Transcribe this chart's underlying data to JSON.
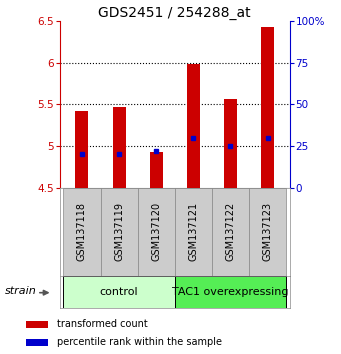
{
  "title": "GDS2451 / 254288_at",
  "samples": [
    "GSM137118",
    "GSM137119",
    "GSM137120",
    "GSM137121",
    "GSM137122",
    "GSM137123"
  ],
  "red_values": [
    5.42,
    5.47,
    4.93,
    5.98,
    5.57,
    6.43
  ],
  "blue_values": [
    20.0,
    20.0,
    22.0,
    30.0,
    25.0,
    30.0
  ],
  "bar_bottom": 4.5,
  "ylim_left": [
    4.5,
    6.5
  ],
  "ylim_right": [
    0,
    100
  ],
  "yticks_left": [
    4.5,
    5.0,
    5.5,
    6.0,
    6.5
  ],
  "ytick_labels_left": [
    "4.5",
    "5",
    "5.5",
    "6",
    "6.5"
  ],
  "yticks_right": [
    0,
    25,
    50,
    75,
    100
  ],
  "ytick_labels_right": [
    "0",
    "25",
    "50",
    "75",
    "100%"
  ],
  "grid_yticks": [
    5.0,
    5.5,
    6.0
  ],
  "groups": [
    {
      "label": "control",
      "indices": [
        0,
        1,
        2
      ],
      "color": "#ccffcc",
      "edge_color": "#88cc88"
    },
    {
      "label": "TAC1 overexpressing",
      "indices": [
        3,
        4,
        5
      ],
      "color": "#55ee55",
      "edge_color": "#22aa22"
    }
  ],
  "strain_label": "strain",
  "red_color": "#cc0000",
  "blue_color": "#0000cc",
  "legend_red": "transformed count",
  "legend_blue": "percentile rank within the sample",
  "bar_width": 0.35,
  "title_fontsize": 10,
  "tick_fontsize": 7.5,
  "label_fontsize": 7,
  "group_label_fontsize": 8,
  "sample_box_color": "#cccccc",
  "sample_box_edge": "#888888"
}
